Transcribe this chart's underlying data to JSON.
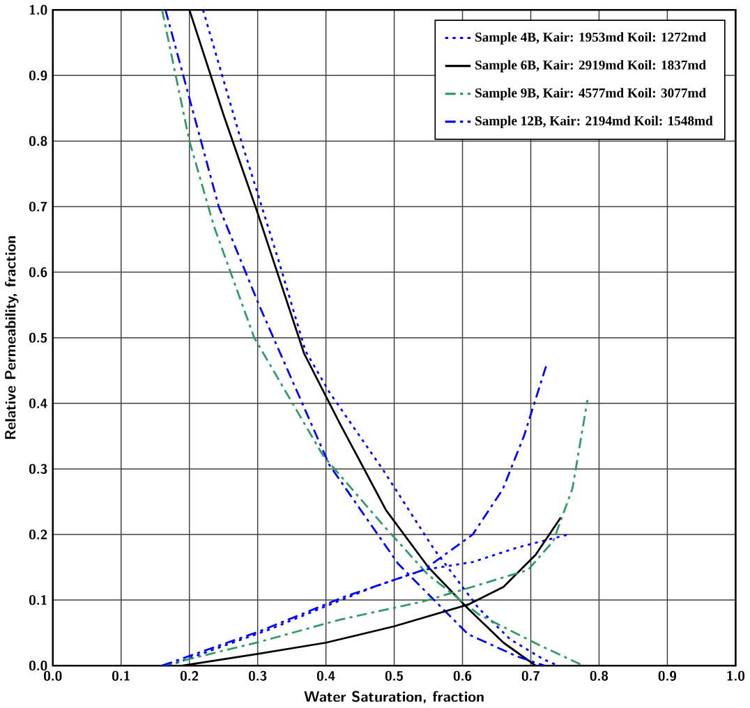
{
  "chart_data": {
    "type": "line",
    "xlabel": "Water Saturation, fraction",
    "ylabel": "Relative Permeability, fraction",
    "xlim": [
      0,
      1
    ],
    "ylim": [
      0,
      1
    ],
    "xticks": [
      {
        "value": 0,
        "label": "0.0"
      },
      {
        "value": 0.1,
        "label": "0.1"
      },
      {
        "value": 0.2,
        "label": "0.2"
      },
      {
        "value": 0.3,
        "label": "0.3"
      },
      {
        "value": 0.4,
        "label": "0.4"
      },
      {
        "value": 0.5,
        "label": "0.5"
      },
      {
        "value": 0.6,
        "label": "0.6"
      },
      {
        "value": 0.7,
        "label": "0.7"
      },
      {
        "value": 0.8,
        "label": "0.8"
      },
      {
        "value": 0.9,
        "label": "0.9"
      },
      {
        "value": 1,
        "label": "1.0"
      }
    ],
    "yticks": [
      {
        "value": 0,
        "label": "0.0"
      },
      {
        "value": 0.1,
        "label": "0.1"
      },
      {
        "value": 0.2,
        "label": "0.2"
      },
      {
        "value": 0.3,
        "label": "0.3"
      },
      {
        "value": 0.4,
        "label": "0.4"
      },
      {
        "value": 0.5,
        "label": "0.5"
      },
      {
        "value": 0.6,
        "label": "0.6"
      },
      {
        "value": 0.7,
        "label": "0.7"
      },
      {
        "value": 0.8,
        "label": "0.8"
      },
      {
        "value": 0.9,
        "label": "0.9"
      },
      {
        "value": 1,
        "label": "1.0"
      }
    ],
    "grid": true,
    "legend": "top right",
    "marker": "none",
    "series": [
      {
        "name": "Sample 4B,  Kair: 1953md   Koil: 1272md",
        "color": "#0000ff",
        "line_style": "dotted",
        "x": [
          0.22,
          0.276,
          0.33,
          0.37,
          0.405,
          0.484,
          0.558,
          0.624,
          0.67,
          0.718,
          0.74
        ],
        "values": [
          1.0,
          0.8,
          0.62,
          0.48,
          0.417,
          0.298,
          0.178,
          0.087,
          0.04,
          0.01,
          0.0
        ]
      },
      {
        "name": "Sample 6B,  Kair: 2919md   Koil: 1837md",
        "color": "#000000",
        "line_style": "solid",
        "x": [
          0.2,
          0.25,
          0.3,
          0.368,
          0.42,
          0.488,
          0.55,
          0.608,
          0.66,
          0.707
        ],
        "values": [
          1.0,
          0.84,
          0.69,
          0.476,
          0.37,
          0.237,
          0.15,
          0.087,
          0.035,
          0.0
        ]
      },
      {
        "name": "Sample 9B,  Kair: 4577md   Koil: 3077md",
        "color": "#339966",
        "line_style": "dashed",
        "x": [
          0.16,
          0.2,
          0.236,
          0.295,
          0.396,
          0.484,
          0.549,
          0.624,
          0.711,
          0.777
        ],
        "values": [
          1.0,
          0.8,
          0.67,
          0.5,
          0.32,
          0.214,
          0.139,
          0.078,
          0.032,
          0.0
        ]
      },
      {
        "name": "Sample 12B,  Kair: 2194md   Koil: 1548md",
        "color": "#0000ff",
        "line_style": "dashed",
        "x": [
          0.165,
          0.243,
          0.302,
          0.405,
          0.506,
          0.608,
          0.68,
          0.72
        ],
        "values": [
          1.0,
          0.7,
          0.55,
          0.306,
          0.155,
          0.048,
          0.014,
          0.0
        ]
      },
      {
        "color": "#0000ff",
        "line_style": "dotted",
        "x": [
          0.17,
          0.25,
          0.317,
          0.396,
          0.47,
          0.543,
          0.615,
          0.68,
          0.755
        ],
        "values": [
          0.0,
          0.03,
          0.055,
          0.089,
          0.12,
          0.146,
          0.158,
          0.18,
          0.2
        ]
      },
      {
        "color": "#000000",
        "line_style": "solid",
        "x": [
          0.19,
          0.3,
          0.4,
          0.5,
          0.608,
          0.66,
          0.707,
          0.744
        ],
        "values": [
          0.0,
          0.018,
          0.035,
          0.06,
          0.093,
          0.12,
          0.169,
          0.226
        ]
      },
      {
        "color": "#339966",
        "line_style": "dashed",
        "x": [
          0.16,
          0.302,
          0.42,
          0.543,
          0.63,
          0.696,
          0.733,
          0.761,
          0.783
        ],
        "values": [
          0.0,
          0.036,
          0.07,
          0.098,
          0.125,
          0.146,
          0.19,
          0.27,
          0.405
        ]
      },
      {
        "color": "#0000ff",
        "line_style": "dashed",
        "x": [
          0.16,
          0.302,
          0.427,
          0.543,
          0.615,
          0.659,
          0.69,
          0.724
        ],
        "values": [
          0.0,
          0.052,
          0.105,
          0.146,
          0.2,
          0.269,
          0.35,
          0.462
        ]
      }
    ]
  }
}
